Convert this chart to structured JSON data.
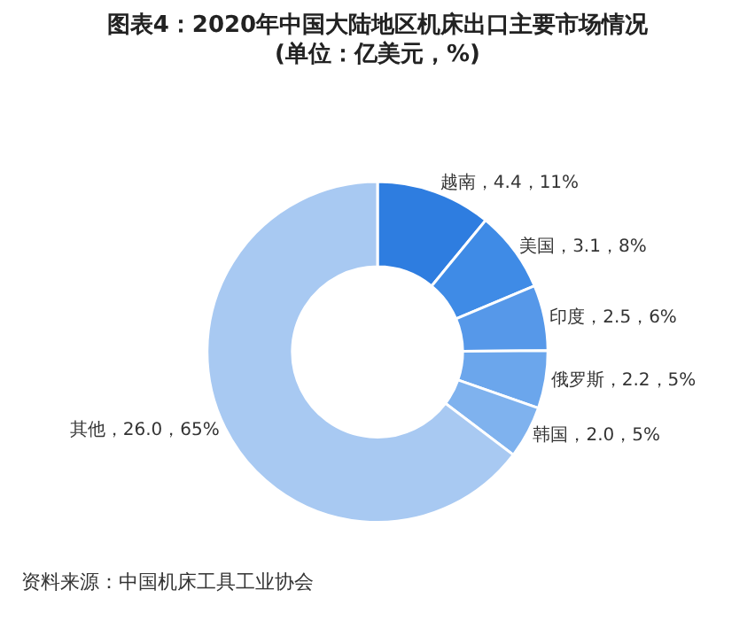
{
  "chart_data": {
    "type": "donut",
    "title": "图表4：2020年中国大陆地区机床出口主要市场情况",
    "subtitle": "(单位：亿美元，%)",
    "categories": [
      "越南",
      "美国",
      "印度",
      "俄罗斯",
      "韩国",
      "其他"
    ],
    "values": [
      4.4,
      3.1,
      2.5,
      2.2,
      2.0,
      26.0
    ],
    "value_labels": [
      "，4.4，11%",
      "，3.1，8%",
      "，2.5，6%",
      "，2.2，5%",
      "，2.0，5%",
      "，26.0，65%"
    ],
    "colors": [
      "#2e7de0",
      "#3f8be6",
      "#5698e9",
      "#6ba6ec",
      "#7fb2ee",
      "#a8c9f2"
    ],
    "legend": false,
    "annotations": [
      "资料来源：中国机床工具工业协会"
    ]
  }
}
